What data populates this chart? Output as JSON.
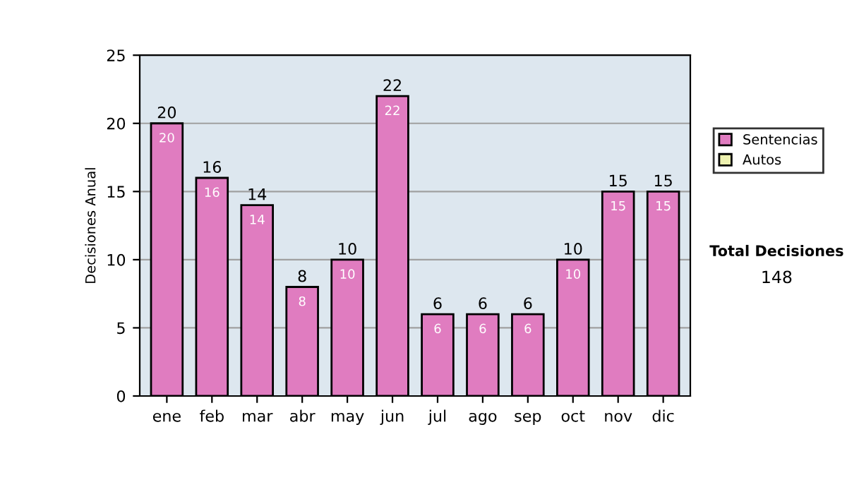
{
  "chart_data": {
    "type": "bar",
    "ylabel": "Decisiones Anual",
    "categories": [
      "ene",
      "feb",
      "mar",
      "abr",
      "may",
      "jun",
      "jul",
      "ago",
      "sep",
      "oct",
      "nov",
      "dic"
    ],
    "series": [
      {
        "name": "Sentencias",
        "color": "#e07cc0",
        "values": [
          20,
          16,
          14,
          8,
          10,
          22,
          6,
          6,
          6,
          10,
          15,
          15
        ]
      },
      {
        "name": "Autos",
        "color": "#eef2b0",
        "values": [
          null,
          null,
          null,
          null,
          null,
          null,
          null,
          null,
          null,
          null,
          null,
          null
        ]
      }
    ],
    "ylim": [
      0,
      25
    ],
    "yticks": [
      0,
      5,
      10,
      15,
      20,
      25
    ],
    "totals": [
      "20",
      "16",
      "14",
      "8",
      "10",
      "22",
      "6",
      "6",
      "6",
      "10",
      "15",
      "15"
    ],
    "grid": "y",
    "legend": "right",
    "data_labels": true,
    "annotations": [
      "Total Decisiones",
      "148"
    ]
  }
}
